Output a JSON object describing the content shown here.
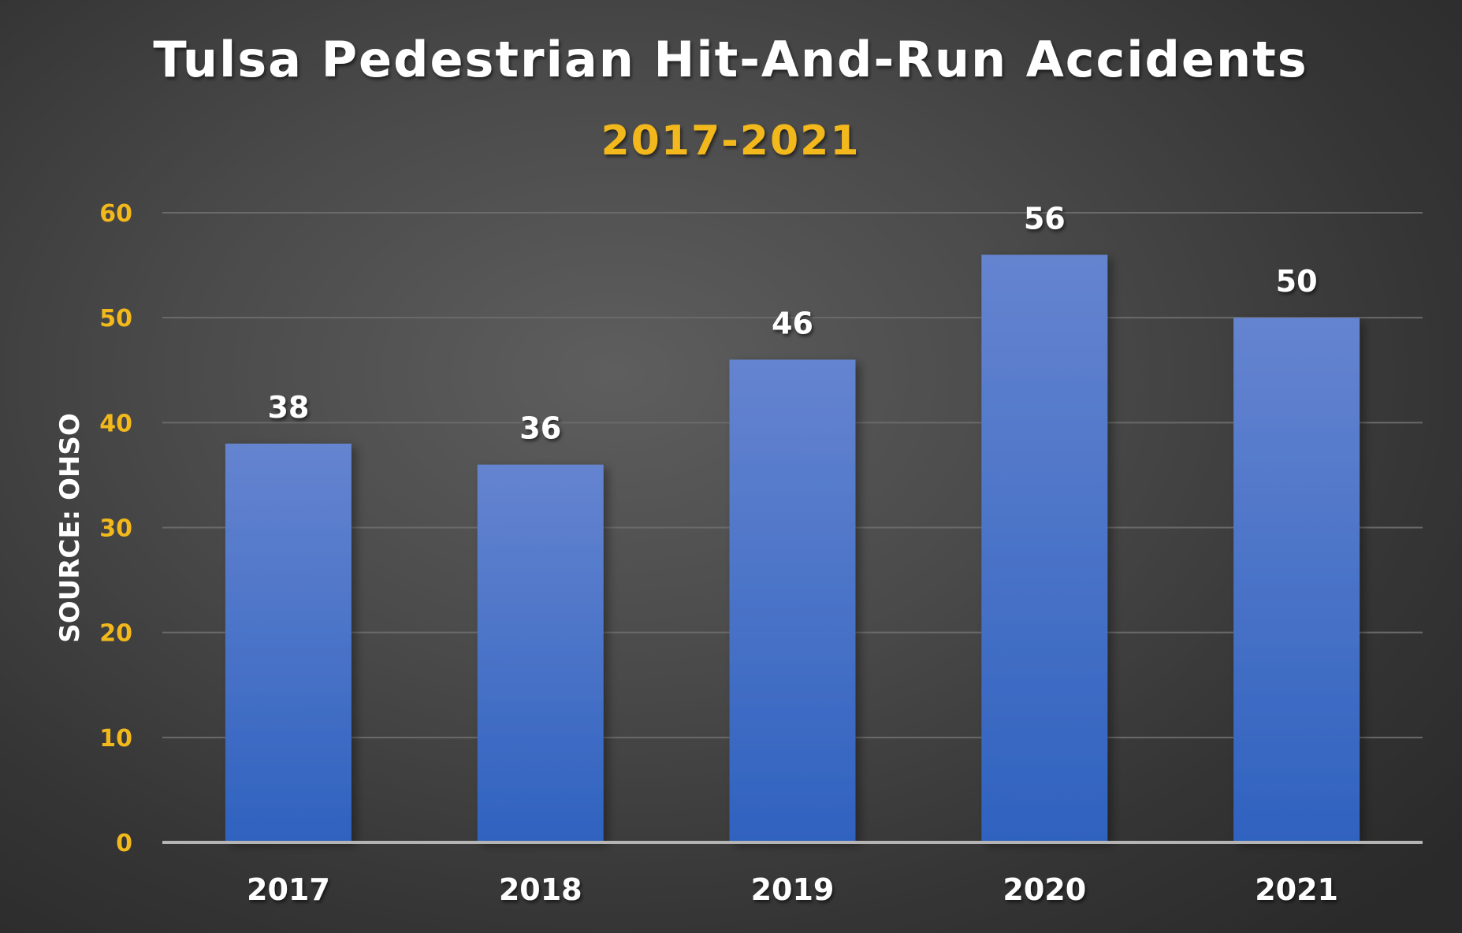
{
  "chart_data": {
    "type": "bar",
    "title": "Tulsa Pedestrian Hit-And-Run Accidents",
    "subtitle": "2017-2021",
    "xlabel": "",
    "ylabel": "SOURCE: OHSO",
    "categories": [
      "2017",
      "2018",
      "2019",
      "2020",
      "2021"
    ],
    "values": [
      38,
      36,
      46,
      56,
      50
    ],
    "ylim": [
      0,
      60
    ],
    "yticks": [
      0,
      10,
      20,
      30,
      40,
      50,
      60
    ],
    "grid": true,
    "legend": "none",
    "colors": {
      "bar_top": "#6584d0",
      "bar_bottom": "#2f62bf",
      "tick_accent": "#f2b81c",
      "text": "#ffffff"
    }
  }
}
